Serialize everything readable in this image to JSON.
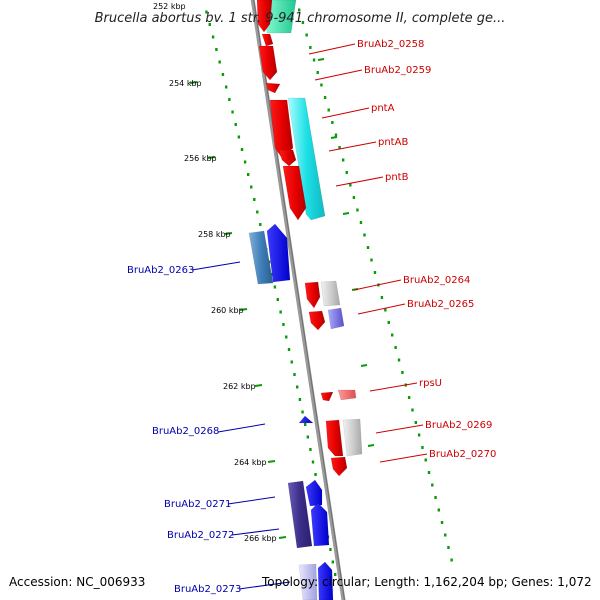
{
  "title": "Brucella abortus bv. 1 str. 9-941 chromosome II, complete ge...",
  "footer": {
    "accession": "Accession: NC_006933",
    "summary": "Topology: circular; Length: 1,162,204 bp; Genes: 1,072"
  },
  "ticks": [
    "252 kbp",
    "254 kbp",
    "256 kbp",
    "258 kbp",
    "260 kbp",
    "262 kbp",
    "264 kbp",
    "266 kbp"
  ],
  "colors": {
    "forward_label": "#cc0000",
    "reverse_label": "#0000aa",
    "backbone": "#888888",
    "tick_dots": "#009900"
  },
  "labels": [
    {
      "name": "BruAb2_0258",
      "strand": "forward"
    },
    {
      "name": "BruAb2_0259",
      "strand": "forward"
    },
    {
      "name": "pntA",
      "strand": "forward"
    },
    {
      "name": "pntAB",
      "strand": "forward"
    },
    {
      "name": "pntB",
      "strand": "forward"
    },
    {
      "name": "BruAb2_0263",
      "strand": "reverse"
    },
    {
      "name": "BruAb2_0264",
      "strand": "forward"
    },
    {
      "name": "BruAb2_0265",
      "strand": "forward"
    },
    {
      "name": "rpsU",
      "strand": "forward"
    },
    {
      "name": "BruAb2_0268",
      "strand": "reverse"
    },
    {
      "name": "BruAb2_0269",
      "strand": "forward"
    },
    {
      "name": "BruAb2_0270",
      "strand": "forward"
    },
    {
      "name": "BruAb2_0271",
      "strand": "reverse"
    },
    {
      "name": "BruAb2_0272",
      "strand": "reverse"
    },
    {
      "name": "BruAb2_0273",
      "strand": "reverse"
    }
  ]
}
